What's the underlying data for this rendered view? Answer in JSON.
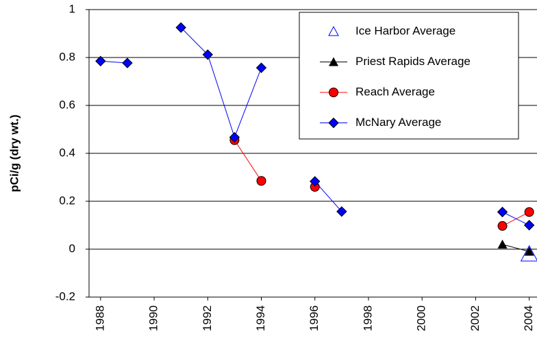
{
  "chart_data": {
    "type": "line",
    "y_label": "pCi/g (dry wt.)",
    "x": [
      1988,
      1989,
      1990,
      1991,
      1992,
      1993,
      1994,
      1995,
      1996,
      1997,
      1998,
      1999,
      2000,
      2001,
      2002,
      2003,
      2004
    ],
    "series": [
      {
        "name": "Ice Harbor Average",
        "color": "#0000ff",
        "marker": "open-triangle",
        "values": [
          null,
          null,
          null,
          null,
          null,
          null,
          null,
          null,
          null,
          null,
          null,
          null,
          null,
          null,
          null,
          null,
          -0.02
        ]
      },
      {
        "name": "Priest Rapids Average",
        "color": "#000000",
        "marker": "triangle",
        "values": [
          null,
          null,
          null,
          null,
          null,
          null,
          null,
          null,
          null,
          null,
          null,
          null,
          null,
          null,
          null,
          0.02,
          -0.01
        ]
      },
      {
        "name": "Reach Average",
        "color": "#ff0000",
        "marker": "circle",
        "values": [
          null,
          null,
          null,
          null,
          null,
          0.455,
          0.285,
          null,
          0.26,
          null,
          null,
          null,
          null,
          null,
          null,
          0.097,
          0.155
        ]
      },
      {
        "name": "McNary Average",
        "color": "#0000ff",
        "marker": "diamond",
        "values": [
          0.785,
          0.777,
          null,
          0.925,
          0.812,
          0.467,
          0.757,
          null,
          0.283,
          0.157,
          null,
          null,
          null,
          null,
          null,
          0.155,
          0.1
        ]
      }
    ],
    "xlim": [
      1987.57,
      2004.29
    ],
    "xticks": [
      1988,
      1990,
      1992,
      1994,
      1996,
      1998,
      2000,
      2002,
      2004
    ],
    "ylim": [
      -0.2,
      1
    ],
    "yticks": [
      -0.2,
      0,
      0.2,
      0.4,
      0.6,
      0.8,
      1
    ],
    "grid": true,
    "legend": "upper-right"
  }
}
